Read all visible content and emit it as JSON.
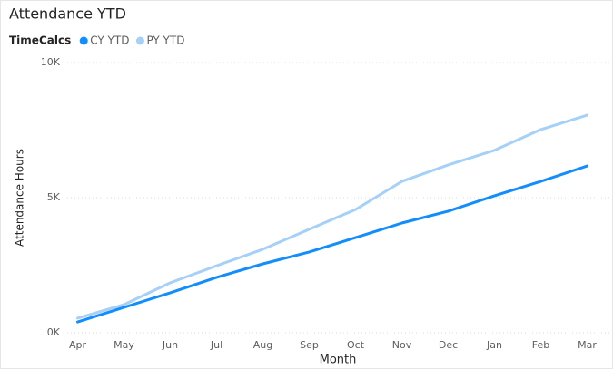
{
  "chart_data": {
    "type": "line",
    "title": "Attendance YTD",
    "legend_title": "TimeCalcs",
    "x_label": "Month",
    "y_label": "Attendance Hours",
    "categories": [
      "Apr",
      "May",
      "Jun",
      "Jul",
      "Aug",
      "Sep",
      "Oct",
      "Nov",
      "Dec",
      "Jan",
      "Feb",
      "Mar"
    ],
    "series": [
      {
        "name": "CY YTD",
        "color": "#118dff",
        "values": [
          400,
          940,
          1480,
          2050,
          2550,
          2990,
          3520,
          4060,
          4500,
          5070,
          5600,
          6170
        ]
      },
      {
        "name": "PY YTD",
        "color": "#a5d0f7",
        "values": [
          540,
          1040,
          1850,
          2480,
          3090,
          3830,
          4560,
          5600,
          6210,
          6750,
          7520,
          8050
        ]
      }
    ],
    "ylim": [
      0,
      10000
    ],
    "yticks": [
      {
        "value": 0,
        "label": "0K"
      },
      {
        "value": 5000,
        "label": "5K"
      },
      {
        "value": 10000,
        "label": "10K"
      }
    ],
    "grid": true,
    "legend": "top-left"
  }
}
